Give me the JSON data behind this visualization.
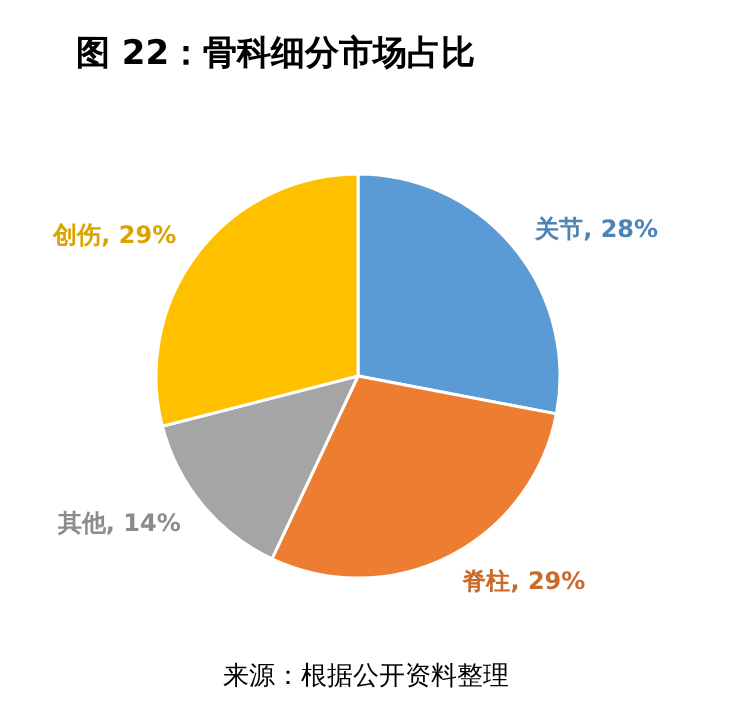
{
  "chart_data": {
    "type": "pie",
    "title": "图 22：骨科细分市场占比",
    "categories": [
      "关节",
      "脊柱",
      "其他",
      "创伤"
    ],
    "values": [
      28,
      29,
      14,
      29
    ],
    "value_labels": [
      "28%",
      "29%",
      "14%",
      "29%"
    ],
    "colors": [
      "#5b9bd5",
      "#ed7d31",
      "#a5a5a5",
      "#ffc000"
    ],
    "annotations": [
      "来源：根据公开资料整理"
    ]
  }
}
